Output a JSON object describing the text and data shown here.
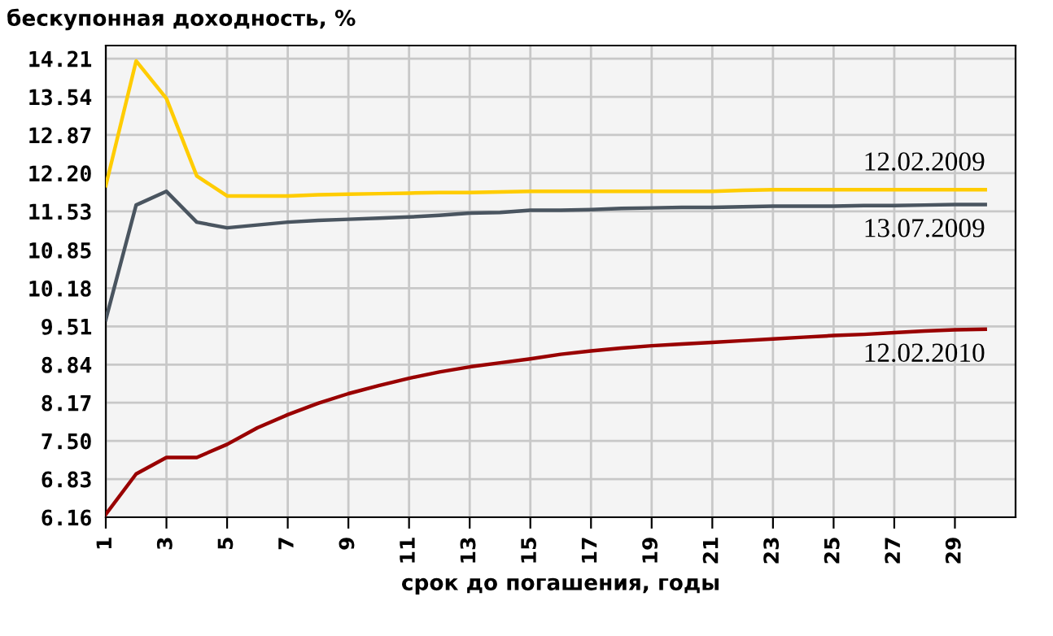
{
  "chart_data": {
    "type": "line",
    "ylabel": "бескупонная доходность, %",
    "xlabel": "срок до погашения, годы",
    "x": [
      1,
      2,
      3,
      4,
      5,
      6,
      7,
      8,
      9,
      10,
      11,
      12,
      13,
      14,
      15,
      16,
      17,
      18,
      19,
      20,
      21,
      22,
      23,
      24,
      25,
      26,
      27,
      28,
      29,
      30
    ],
    "series": [
      {
        "name": "12.02.2009",
        "color": "#ffcc00",
        "values": [
          11.98,
          14.17,
          13.51,
          12.15,
          11.8,
          11.8,
          11.8,
          11.82,
          11.83,
          11.84,
          11.85,
          11.86,
          11.86,
          11.87,
          11.88,
          11.88,
          11.88,
          11.88,
          11.88,
          11.88,
          11.88,
          11.9,
          11.91,
          11.91,
          11.91,
          11.91,
          11.91,
          11.91,
          11.91,
          11.91
        ]
      },
      {
        "name": "13.07.2009",
        "color": "#4a5560",
        "values": [
          9.63,
          11.64,
          11.88,
          11.34,
          11.24,
          11.29,
          11.34,
          11.37,
          11.39,
          11.41,
          11.43,
          11.46,
          11.5,
          11.51,
          11.55,
          11.55,
          11.56,
          11.58,
          11.59,
          11.6,
          11.6,
          11.61,
          11.62,
          11.62,
          11.62,
          11.63,
          11.63,
          11.64,
          11.65,
          11.65
        ]
      },
      {
        "name": "12.02.2010",
        "color": "#990000",
        "values": [
          6.21,
          6.92,
          7.21,
          7.21,
          7.44,
          7.73,
          7.96,
          8.16,
          8.33,
          8.47,
          8.6,
          8.71,
          8.8,
          8.87,
          8.94,
          9.02,
          9.08,
          9.13,
          9.17,
          9.2,
          9.23,
          9.26,
          9.29,
          9.32,
          9.35,
          9.37,
          9.4,
          9.43,
          9.45,
          9.46
        ]
      }
    ],
    "xlim": [
      1,
      31
    ],
    "xticks": [
      1,
      3,
      5,
      7,
      9,
      11,
      13,
      15,
      17,
      19,
      21,
      23,
      25,
      27,
      29
    ],
    "ylim": [
      6.16,
      14.44
    ],
    "yticks": [
      6.16,
      6.83,
      {
        "value": 7.5,
        "label": "7.50"
      },
      8.17,
      8.84,
      9.51,
      10.18,
      10.85,
      11.53,
      {
        "value": 12.2,
        "label": "12.20"
      },
      12.87,
      13.54,
      14.21
    ],
    "grid": true,
    "legend": false,
    "marker": "none",
    "line_style": "solid"
  }
}
